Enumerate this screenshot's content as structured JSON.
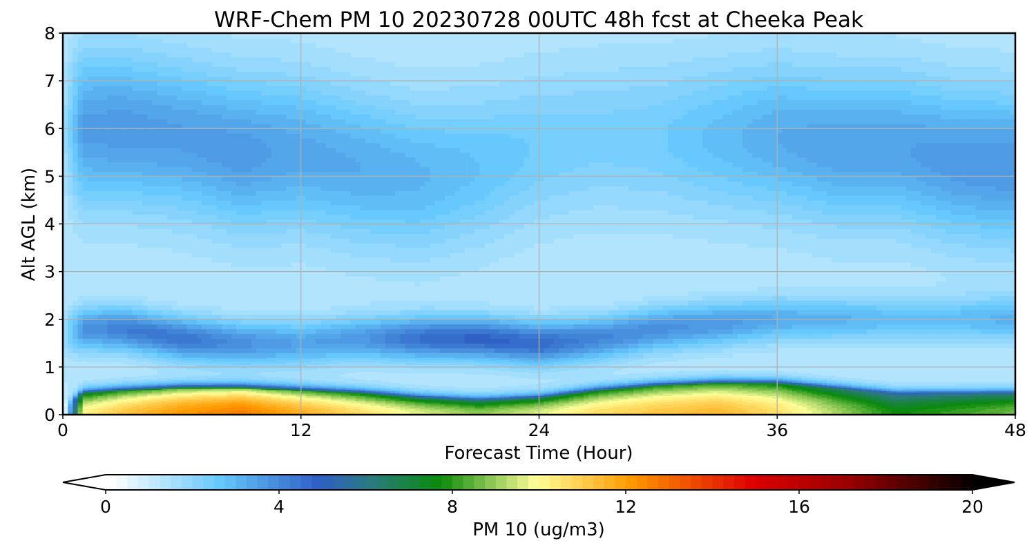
{
  "chart_data": {
    "type": "heatmap",
    "title": "WRF-Chem PM 10  20230728 00UTC 48h fcst at Cheeka Peak",
    "xlabel": "Forecast Time (Hour)",
    "ylabel": "Alt AGL (km)",
    "xlim": [
      0,
      48
    ],
    "ylim": [
      0,
      8
    ],
    "x_ticks": [
      "0",
      "12",
      "24",
      "36",
      "48"
    ],
    "y_ticks": [
      "0",
      "1",
      "2",
      "3",
      "4",
      "5",
      "6",
      "7",
      "8"
    ],
    "grid": true,
    "colorbar": {
      "label": "PM 10  (ug/m3)",
      "range": [
        0,
        20
      ],
      "ticks": [
        "0",
        "4",
        "8",
        "12",
        "16",
        "20"
      ],
      "extend": "both",
      "orientation": "horizontal",
      "placement": "bottom",
      "stops": [
        {
          "v": 0,
          "color": "#ffffff"
        },
        {
          "v": 2.5,
          "color": "#66c8fc"
        },
        {
          "v": 4.8,
          "color": "#2e5fc4"
        },
        {
          "v": 6,
          "color": "#2a7a80"
        },
        {
          "v": 7.6,
          "color": "#0a8a0a"
        },
        {
          "v": 9.8,
          "color": "#ffff99"
        },
        {
          "v": 12,
          "color": "#ff9900"
        },
        {
          "v": 14.8,
          "color": "#dd0000"
        },
        {
          "v": 17,
          "color": "#990000"
        },
        {
          "v": 20,
          "color": "#000000"
        }
      ]
    },
    "profile_hours": [
      0,
      1,
      3,
      6,
      9,
      12,
      15,
      18,
      21,
      24,
      27,
      30,
      33,
      36,
      39,
      42,
      45,
      48
    ],
    "surface_peak_ugm3": [
      0,
      10.5,
      11.5,
      12.5,
      13.0,
      12.0,
      11.0,
      10.0,
      9.3,
      10.0,
      11.0,
      11.5,
      11.8,
      11.0,
      9.5,
      8.0,
      8.5,
      9.0
    ],
    "boundary_layer_top_km": [
      0.2,
      0.45,
      0.5,
      0.55,
      0.55,
      0.5,
      0.45,
      0.35,
      0.3,
      0.35,
      0.5,
      0.6,
      0.65,
      0.65,
      0.55,
      0.45,
      0.45,
      0.45
    ],
    "lofted_layer_peak_ugm3": [
      0.5,
      2.5,
      3.0,
      3.2,
      2.6,
      2.2,
      2.4,
      3.3,
      3.6,
      3.4,
      2.8,
      2.6,
      2.4,
      2.0,
      1.8,
      1.6,
      1.6,
      1.8
    ],
    "lofted_layer_altitude_km": [
      1.7,
      1.8,
      1.8,
      1.6,
      1.5,
      1.5,
      1.6,
      1.6,
      1.6,
      1.5,
      1.6,
      1.8,
      1.9,
      2.0,
      2.0,
      2.0,
      2.0,
      2.0
    ],
    "upper_level_ugm3": [
      0.3,
      2.3,
      2.4,
      2.3,
      2.4,
      2.1,
      2.0,
      1.8,
      1.5,
      1.2,
      1.1,
      1.2,
      1.6,
      2.0,
      2.2,
      2.2,
      2.4,
      2.5
    ],
    "upper_level_altitude_km": [
      6.0,
      6.0,
      6.0,
      5.8,
      5.5,
      5.5,
      5.2,
      5.0,
      5.2,
      5.6,
      5.8,
      5.8,
      5.8,
      5.8,
      5.6,
      5.6,
      5.3,
      5.2
    ]
  }
}
